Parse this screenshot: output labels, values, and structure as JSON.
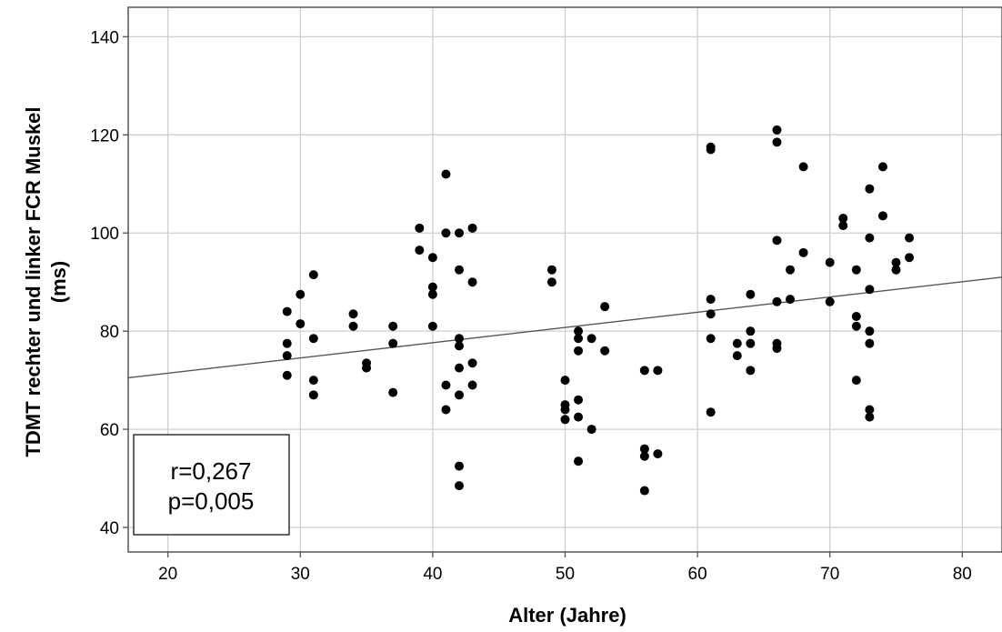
{
  "chart_data": {
    "type": "scatter",
    "xlabel": "Alter (Jahre)",
    "ylabel_line1": "TDMT rechter und linker FCR Muskel",
    "ylabel_line2": "(ms)",
    "xlim": [
      17,
      83
    ],
    "ylim": [
      35,
      146
    ],
    "xticks": [
      20,
      30,
      40,
      50,
      60,
      70,
      80
    ],
    "yticks": [
      40,
      60,
      80,
      100,
      120,
      140
    ],
    "grid": true,
    "fit_line": {
      "x": [
        17,
        83
      ],
      "y": [
        70.5,
        91.0
      ]
    },
    "annotation": {
      "line1": "r=0,267",
      "line2": "p=0,005"
    },
    "points": [
      [
        29,
        84
      ],
      [
        29,
        77.5
      ],
      [
        29,
        75
      ],
      [
        29,
        71
      ],
      [
        30,
        87.5
      ],
      [
        30,
        81.5
      ],
      [
        31,
        91.5
      ],
      [
        31,
        78.5
      ],
      [
        31,
        70
      ],
      [
        31,
        67
      ],
      [
        34,
        83.5
      ],
      [
        34,
        81
      ],
      [
        35,
        73.5
      ],
      [
        35,
        72.5
      ],
      [
        37,
        81
      ],
      [
        37,
        77.5
      ],
      [
        37,
        67.5
      ],
      [
        39,
        101
      ],
      [
        39,
        96.5
      ],
      [
        40,
        95
      ],
      [
        40,
        89
      ],
      [
        40,
        87.5
      ],
      [
        40,
        81
      ],
      [
        41,
        112
      ],
      [
        41,
        100
      ],
      [
        41,
        69
      ],
      [
        41,
        64
      ],
      [
        42,
        100
      ],
      [
        42,
        92.5
      ],
      [
        42,
        78.5
      ],
      [
        42,
        77
      ],
      [
        42,
        72.5
      ],
      [
        42,
        67
      ],
      [
        42,
        52.5
      ],
      [
        42,
        48.5
      ],
      [
        43,
        101
      ],
      [
        43,
        90
      ],
      [
        43,
        73.5
      ],
      [
        43,
        69
      ],
      [
        49,
        92.5
      ],
      [
        49,
        90
      ],
      [
        50,
        70
      ],
      [
        50,
        65
      ],
      [
        50,
        64
      ],
      [
        50,
        62
      ],
      [
        51,
        80
      ],
      [
        51,
        78.5
      ],
      [
        51,
        76
      ],
      [
        51,
        66
      ],
      [
        51,
        62.5
      ],
      [
        51,
        53.5
      ],
      [
        52,
        78.5
      ],
      [
        52,
        60
      ],
      [
        53,
        85
      ],
      [
        53,
        76
      ],
      [
        56,
        72
      ],
      [
        56,
        56
      ],
      [
        56,
        54.5
      ],
      [
        56,
        47.5
      ],
      [
        57,
        72
      ],
      [
        57,
        55
      ],
      [
        61,
        117.5
      ],
      [
        61,
        117
      ],
      [
        61,
        86.5
      ],
      [
        61,
        83.5
      ],
      [
        61,
        78.5
      ],
      [
        61,
        63.5
      ],
      [
        63,
        77.5
      ],
      [
        63,
        75
      ],
      [
        64,
        87.5
      ],
      [
        64,
        80
      ],
      [
        64,
        77.5
      ],
      [
        64,
        72
      ],
      [
        66,
        121
      ],
      [
        66,
        118.5
      ],
      [
        66,
        98.5
      ],
      [
        66,
        86
      ],
      [
        66,
        77.5
      ],
      [
        66,
        76.5
      ],
      [
        67,
        92.5
      ],
      [
        67,
        86.5
      ],
      [
        68,
        113.5
      ],
      [
        68,
        96
      ],
      [
        70,
        94
      ],
      [
        70,
        86
      ],
      [
        71,
        103
      ],
      [
        71,
        101.5
      ],
      [
        72,
        92.5
      ],
      [
        72,
        83
      ],
      [
        72,
        81
      ],
      [
        72,
        70
      ],
      [
        73,
        109
      ],
      [
        73,
        99
      ],
      [
        73,
        88.5
      ],
      [
        73,
        80
      ],
      [
        73,
        77.5
      ],
      [
        73,
        64
      ],
      [
        73,
        62.5
      ],
      [
        74,
        113.5
      ],
      [
        74,
        103.5
      ],
      [
        75,
        94
      ],
      [
        75,
        92.5
      ],
      [
        76,
        99
      ],
      [
        76,
        95
      ]
    ]
  }
}
